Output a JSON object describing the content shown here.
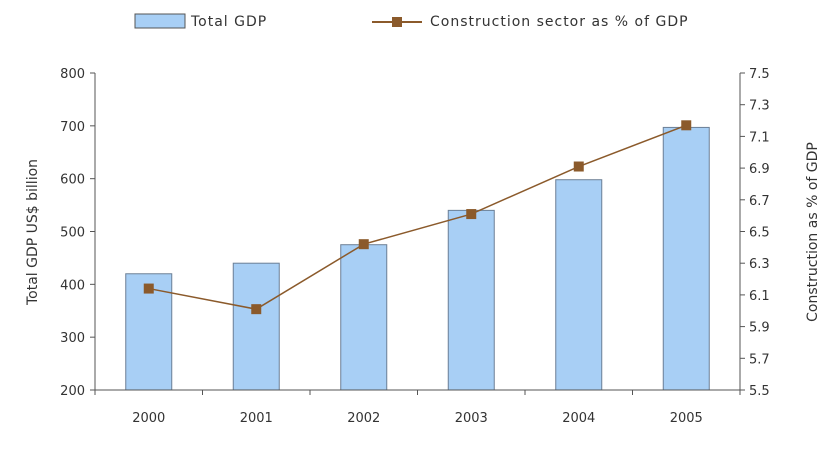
{
  "chart_data": {
    "type": "bar+line",
    "categories": [
      "2000",
      "2001",
      "2002",
      "2003",
      "2004",
      "2005"
    ],
    "series": [
      {
        "name": "Total GDP",
        "type": "bar",
        "axis": "left",
        "values": [
          420,
          440,
          475,
          540,
          598,
          697
        ],
        "color": "#a8cff5"
      },
      {
        "name": "Construction sector as % of GDP",
        "type": "line",
        "axis": "right",
        "values": [
          6.14,
          6.01,
          6.42,
          6.61,
          6.91,
          7.17
        ],
        "color": "#8b5a2b"
      }
    ],
    "ylabel_left": "Total GDP US$ billion",
    "ylabel_right": "Construction as % of GDP",
    "ylim_left": [
      200,
      800
    ],
    "yticks_left": [
      "200",
      "300",
      "400",
      "500",
      "600",
      "700",
      "800"
    ],
    "ylim_right": [
      5.5,
      7.5
    ],
    "yticks_right": [
      "5.5",
      "5.7",
      "5.9",
      "6.1",
      "6.3",
      "6.5",
      "6.7",
      "6.9",
      "7.1",
      "7.3",
      "7.5"
    ],
    "legend_position": "top",
    "grid": false
  }
}
